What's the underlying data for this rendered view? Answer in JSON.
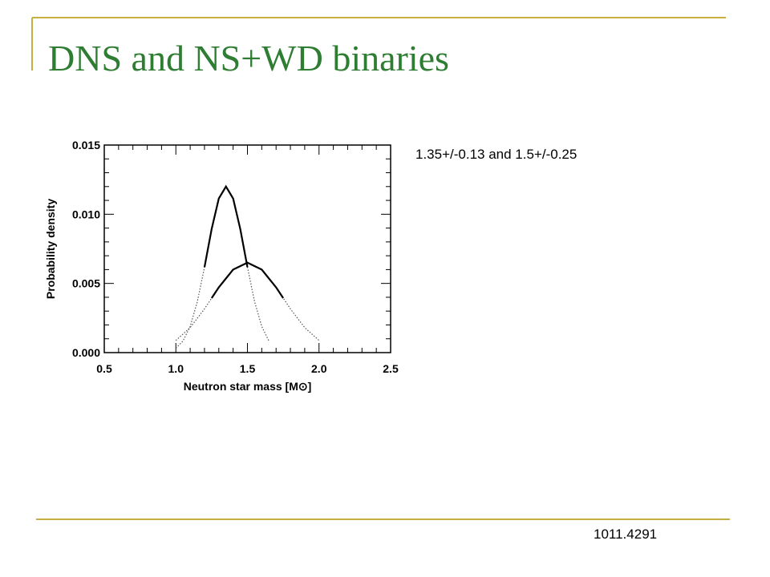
{
  "title": "DNS and NS+WD binaries",
  "annotation": "1.35+/-0.13 and 1.5+/-0.25",
  "footer": "1011.4291",
  "chart_data": {
    "type": "line",
    "xlabel": "Neutron star mass [M⊙]",
    "ylabel": "Probability density",
    "xlim": [
      0.5,
      2.5
    ],
    "ylim": [
      0,
      0.015
    ],
    "xticks": [
      0.5,
      {
        "value": 1,
        "label": "1.0"
      },
      1.5,
      {
        "value": 2,
        "label": "2.0"
      },
      2.5
    ],
    "yticks": [
      {
        "value": 0,
        "label": "0.000"
      },
      {
        "value": 0.005,
        "label": "0.005"
      },
      {
        "value": 0.01,
        "label": "0.010"
      },
      {
        "value": 0.015,
        "label": "0.015"
      }
    ],
    "xminor_ticks": [
      0.6,
      0.7,
      0.8,
      0.9,
      1.1,
      1.2,
      1.3,
      1.4,
      1.6,
      1.7,
      1.8,
      1.9,
      2.1,
      2.2,
      2.3,
      2.4
    ],
    "yminor_ticks": [
      0.001,
      0.002,
      0.003,
      0.004,
      0.006,
      0.007,
      0.008,
      0.009,
      0.011,
      0.012,
      0.013,
      0.014
    ],
    "series": [
      {
        "color": "#555555",
        "line_style": "dotted",
        "x": [
          1.0,
          1.05,
          1.1,
          1.15,
          1.2,
          1.25,
          1.3,
          1.35,
          1.4,
          1.45,
          1.5,
          1.55,
          1.6,
          1.65
        ],
        "values": [
          0.00032,
          0.00084,
          0.00189,
          0.00368,
          0.00617,
          0.00893,
          0.01114,
          0.012,
          0.01114,
          0.00893,
          0.00617,
          0.00368,
          0.00189,
          0.00084
        ]
      },
      {
        "color": "#000000",
        "line_style": "solid",
        "x": [
          1.2,
          1.25,
          1.3,
          1.35,
          1.4,
          1.45,
          1.5
        ],
        "values": [
          0.00617,
          0.00893,
          0.01114,
          0.012,
          0.01114,
          0.00893,
          0.00617
        ]
      },
      {
        "color": "#555555",
        "line_style": "dotted",
        "x": [
          1.0,
          1.1,
          1.2,
          1.25,
          1.3,
          1.4,
          1.5,
          1.6,
          1.7,
          1.75,
          1.8,
          1.9,
          2.0
        ],
        "values": [
          0.00088,
          0.00181,
          0.00316,
          0.00394,
          0.00472,
          0.006,
          0.0065,
          0.006,
          0.00472,
          0.00394,
          0.00316,
          0.00181,
          0.00088
        ]
      },
      {
        "color": "#000000",
        "line_style": "solid",
        "x": [
          1.25,
          1.3,
          1.4,
          1.5,
          1.6,
          1.7,
          1.75
        ],
        "values": [
          0.00394,
          0.00472,
          0.006,
          0.0065,
          0.006,
          0.00472,
          0.00394
        ]
      }
    ]
  }
}
